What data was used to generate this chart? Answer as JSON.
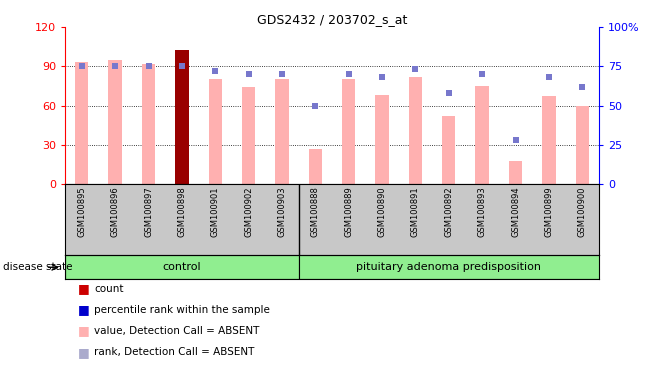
{
  "title": "GDS2432 / 203702_s_at",
  "samples": [
    "GSM100895",
    "GSM100896",
    "GSM100897",
    "GSM100898",
    "GSM100901",
    "GSM100902",
    "GSM100903",
    "GSM100888",
    "GSM100889",
    "GSM100890",
    "GSM100891",
    "GSM100892",
    "GSM100893",
    "GSM100894",
    "GSM100899",
    "GSM100900"
  ],
  "control_count": 7,
  "pink_bar_values": [
    93,
    95,
    92,
    102,
    80,
    74,
    80,
    27,
    80,
    68,
    82,
    52,
    75,
    18,
    67,
    60
  ],
  "pink_bar_is_dark": [
    false,
    false,
    false,
    true,
    false,
    false,
    false,
    false,
    false,
    false,
    false,
    false,
    false,
    false,
    false,
    false
  ],
  "blue_dot_values": [
    75,
    75,
    75,
    75,
    72,
    70,
    70,
    50,
    70,
    68,
    73,
    58,
    70,
    28,
    68,
    62
  ],
  "ylim_left": [
    0,
    120
  ],
  "ylim_right": [
    0,
    100
  ],
  "yticks_left": [
    0,
    30,
    60,
    90,
    120
  ],
  "ytick_labels_left": [
    "0",
    "30",
    "60",
    "90",
    "120"
  ],
  "ytick_labels_right": [
    "0",
    "25",
    "50",
    "75",
    "100%"
  ],
  "yticks_right": [
    0,
    25,
    50,
    75,
    100
  ],
  "pink_bar_color": "#FFB0B0",
  "dark_red_color": "#990000",
  "blue_dot_color": "#7777CC",
  "control_label": "control",
  "pituitary_label": "pituitary adenoma predisposition",
  "group_bg": "#90EE90",
  "cat_bg": "#C8C8C8",
  "legend_items": [
    {
      "color": "#CC0000",
      "marker": "s",
      "label": "count"
    },
    {
      "color": "#0000CC",
      "marker": "s",
      "label": "percentile rank within the sample"
    },
    {
      "color": "#FFB0B0",
      "marker": "s",
      "label": "value, Detection Call = ABSENT"
    },
    {
      "color": "#AAAACC",
      "marker": "s",
      "label": "rank, Detection Call = ABSENT"
    }
  ]
}
